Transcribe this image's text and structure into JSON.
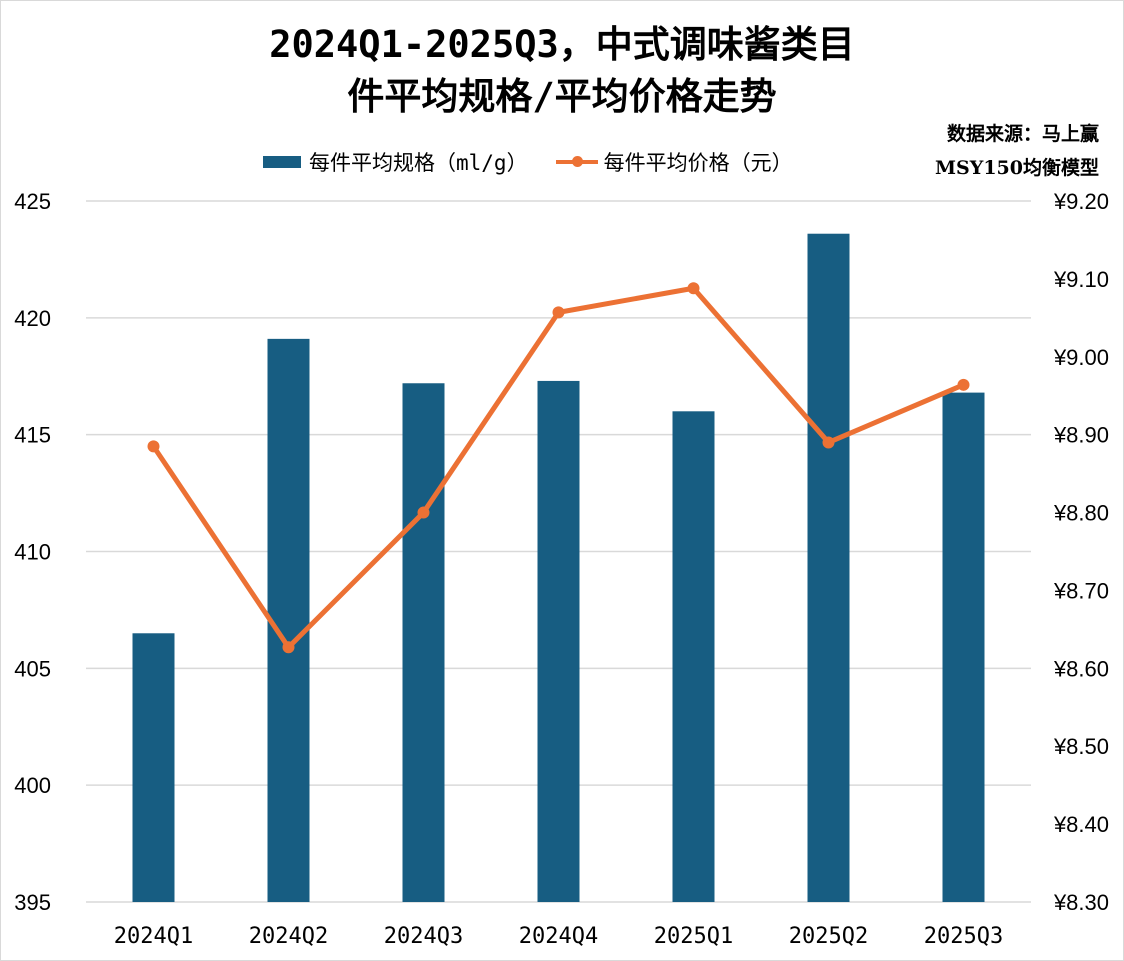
{
  "title": {
    "line1": "2024Q1-2025Q3，中式调味酱类目",
    "line2": "件平均规格/平均价格走势"
  },
  "source": {
    "line1": "数据来源：马上赢",
    "line2": "MSY150均衡模型"
  },
  "colors": {
    "bar": "#175d82",
    "line": "#ec7134",
    "grid": "#d9d9d9"
  },
  "chart_data": {
    "type": "bar",
    "categories": [
      "2024Q1",
      "2024Q2",
      "2024Q3",
      "2024Q4",
      "2025Q1",
      "2025Q2",
      "2025Q3"
    ],
    "series": [
      {
        "name": "每件平均规格（ml/g）",
        "type": "bar",
        "axis": "left",
        "values": [
          406.5,
          419.1,
          417.2,
          417.3,
          416.0,
          423.6,
          416.8
        ]
      },
      {
        "name": "每件平均价格（元）",
        "type": "line",
        "axis": "right",
        "values": [
          8.885,
          8.627,
          8.8,
          9.057,
          9.088,
          8.89,
          8.964
        ]
      }
    ],
    "left_axis": {
      "ylim": [
        395,
        425
      ],
      "ticks": [
        "395",
        "400",
        "405",
        "410",
        "415",
        "420",
        "425"
      ]
    },
    "right_axis": {
      "ylim": [
        8.3,
        9.2
      ],
      "ticks": [
        "¥8.30",
        "¥8.40",
        "¥8.50",
        "¥8.60",
        "¥8.70",
        "¥8.80",
        "¥8.90",
        "¥9.00",
        "¥9.10",
        "¥9.20"
      ]
    },
    "grid": true,
    "legend": "top"
  }
}
